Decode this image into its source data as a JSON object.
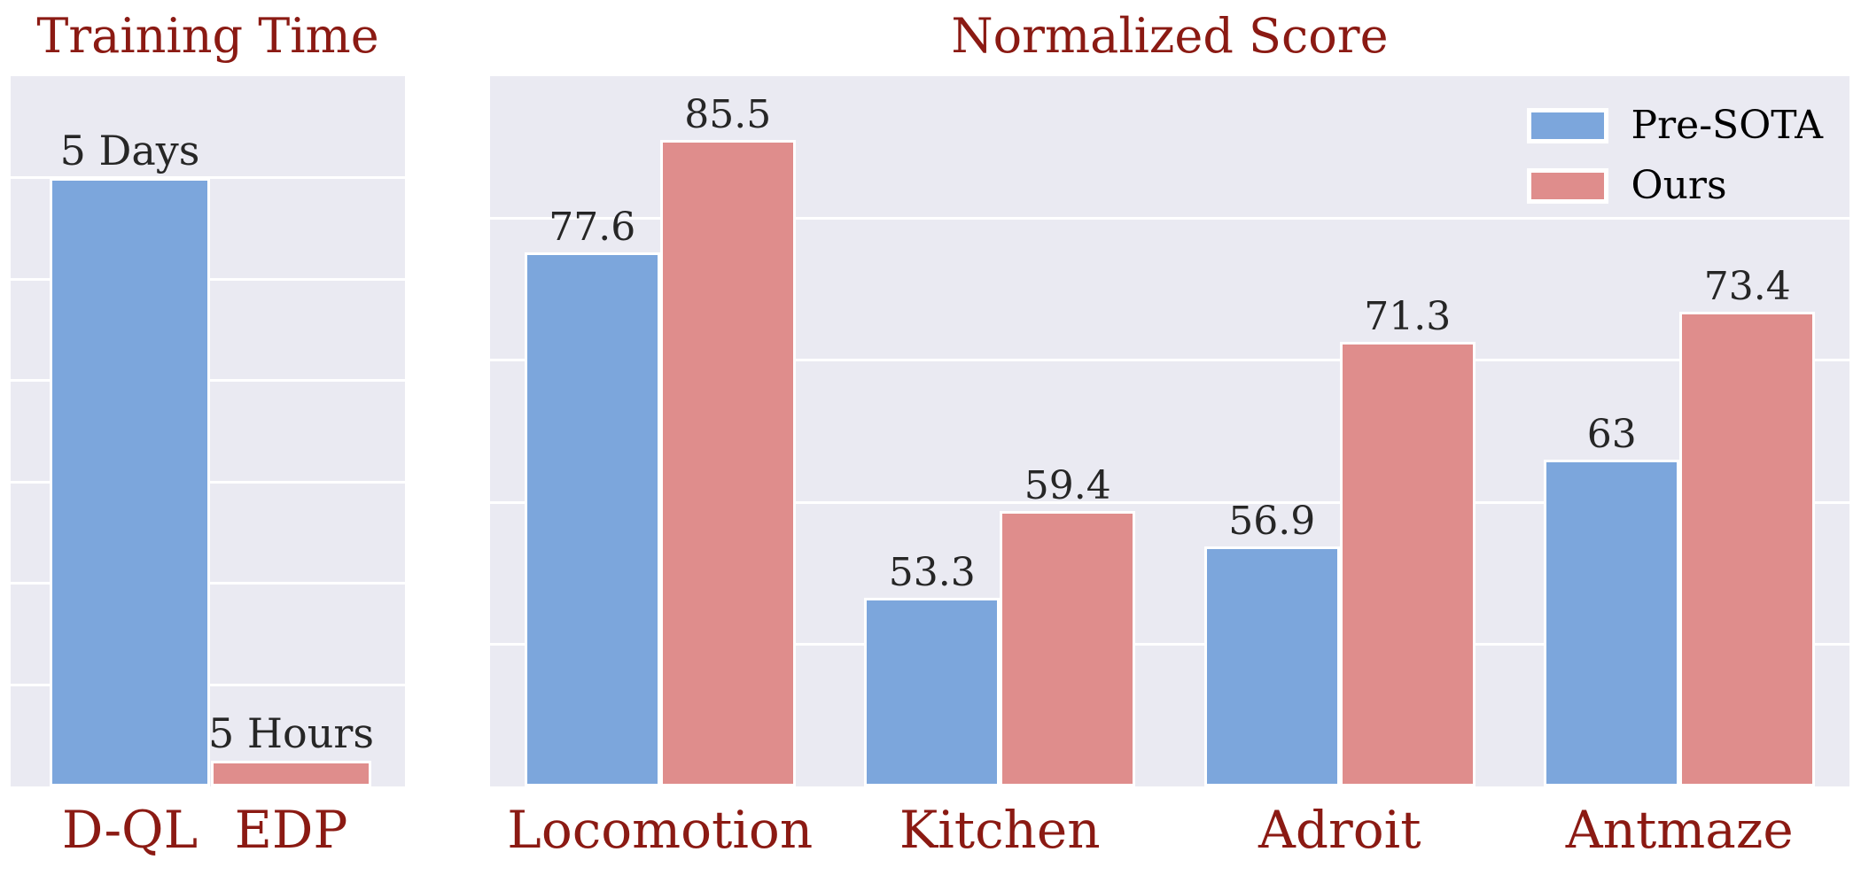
{
  "colors": {
    "pre_sota": "#7CA6DC",
    "ours": "#DF8D8C",
    "plot_bg": "#EAEAF2",
    "grid": "#FFFFFF",
    "heading": "#8B1A13",
    "text": "#262626"
  },
  "chart_data": [
    {
      "type": "bar",
      "title": "Training Time",
      "categories": [
        "D-QL",
        "EDP"
      ],
      "values": [
        120,
        5
      ],
      "unit": "hours",
      "bar_labels": [
        "5 Days",
        "5 Hours"
      ],
      "bar_series": [
        "Pre-SOTA",
        "Ours"
      ],
      "ylim": [
        0,
        140
      ],
      "grid_step": 20,
      "grid": "on",
      "legend": "none"
    },
    {
      "type": "bar",
      "title": "Normalized Score",
      "categories": [
        "Locomotion",
        "Kitchen",
        "Adroit",
        "Antmaze"
      ],
      "series": [
        {
          "name": "Pre-SOTA",
          "values": [
            77.6,
            53.3,
            56.9,
            63
          ],
          "value_labels": [
            "77.6",
            "53.3",
            "56.9",
            "63"
          ]
        },
        {
          "name": "Ours",
          "values": [
            85.5,
            59.4,
            71.3,
            73.4
          ],
          "value_labels": [
            "85.5",
            "59.4",
            "71.3",
            "73.4"
          ]
        }
      ],
      "ylim": [
        40,
        90
      ],
      "grid_step": 10,
      "grid": "on",
      "legend_position": "upper-right"
    }
  ]
}
